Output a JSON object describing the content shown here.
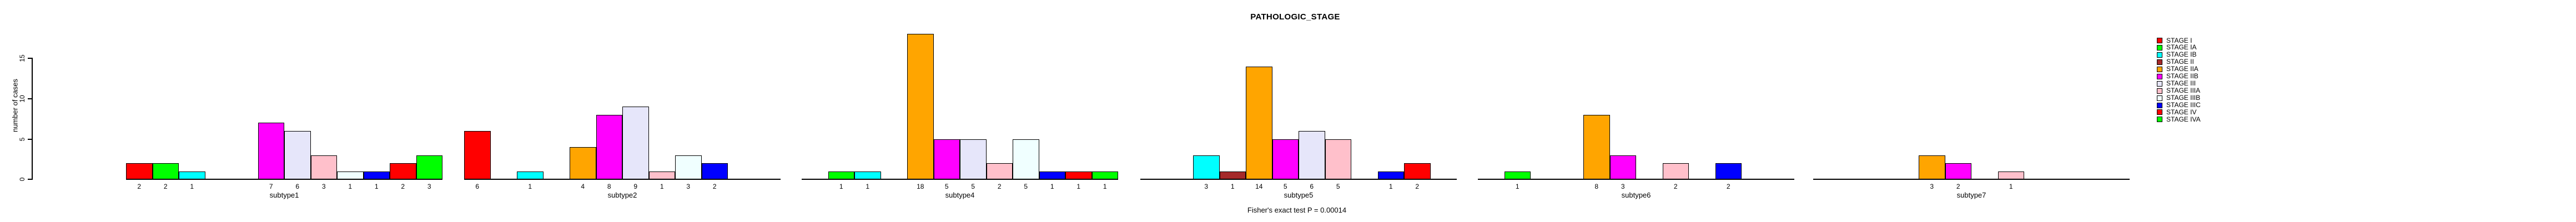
{
  "chart_data": {
    "type": "bar",
    "title": "PATHOLOGIC_STAGE",
    "ylabel": "number of cases",
    "xlabel": "",
    "ylim": [
      0,
      15
    ],
    "yticks": [
      0,
      5,
      10,
      15
    ],
    "grid": false,
    "legend_position": "right",
    "stages": [
      "STAGE I",
      "STAGE IA",
      "STAGE IB",
      "STAGE II",
      "STAGE IIA",
      "STAGE IIB",
      "STAGE III",
      "STAGE IIIA",
      "STAGE IIIB",
      "STAGE IIIC",
      "STAGE IV",
      "STAGE IVA"
    ],
    "stage_colors": [
      "#FF0000",
      "#00FF00",
      "#00FFFF",
      "#A52A2A",
      "#FFA500",
      "#FF00FF",
      "#E6E6FA",
      "#FFC0CB",
      "#F0FFFF",
      "#0000FF",
      "#FF0000",
      "#00FF00"
    ],
    "categories": [
      "subtype1",
      "subtype2",
      "subtype4",
      "subtype5",
      "subtype6",
      "subtype7"
    ],
    "series": [
      {
        "name": "subtype1",
        "values": [
          2,
          2,
          1,
          0,
          0,
          7,
          6,
          3,
          1,
          1,
          2,
          3
        ]
      },
      {
        "name": "subtype2",
        "values": [
          6,
          0,
          1,
          0,
          4,
          8,
          9,
          1,
          3,
          2,
          0,
          0
        ]
      },
      {
        "name": "subtype4",
        "values": [
          0,
          1,
          1,
          0,
          18,
          5,
          5,
          2,
          5,
          1,
          1,
          1
        ]
      },
      {
        "name": "subtype5",
        "values": [
          0,
          0,
          3,
          1,
          14,
          5,
          6,
          5,
          0,
          1,
          2,
          0
        ]
      },
      {
        "name": "subtype6",
        "values": [
          0,
          1,
          0,
          0,
          8,
          3,
          0,
          2,
          0,
          2,
          0,
          0
        ]
      },
      {
        "name": "subtype7",
        "values": [
          0,
          0,
          0,
          0,
          3,
          2,
          0,
          1,
          0,
          0,
          0,
          0
        ]
      }
    ],
    "annotation": "Fisher's exact test P = 0.00014"
  }
}
